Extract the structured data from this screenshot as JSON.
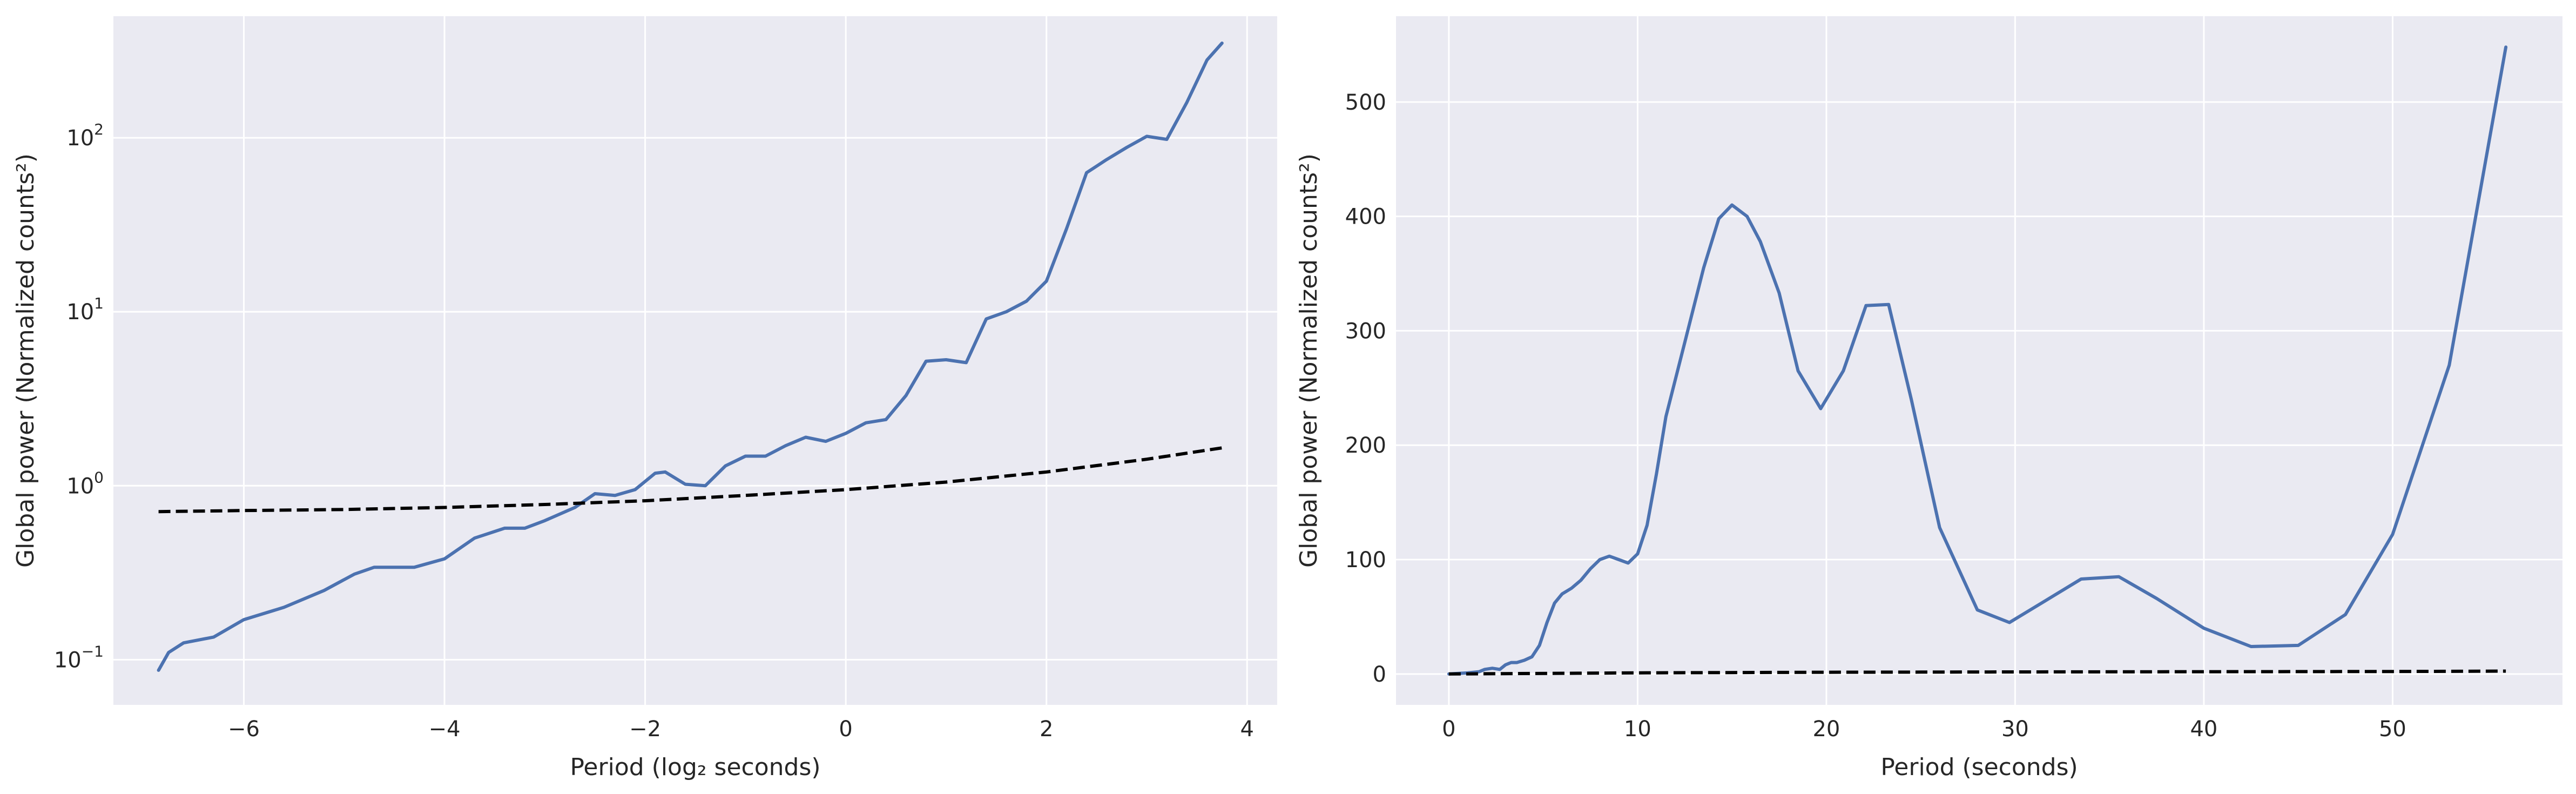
{
  "chart_data": [
    {
      "type": "line",
      "title": "",
      "xlabel": "Period (log₂ seconds)",
      "ylabel": "Global power (Normalized counts²)",
      "yscale": "log",
      "xlim": [
        -7.3,
        4.3
      ],
      "ylim": [
        0.055,
        500
      ],
      "grid": true,
      "style": "seaborn",
      "colors": {
        "background": "#eaeaf2",
        "grid": "#ffffff",
        "series": "#4c72b0",
        "reference": "#000000"
      },
      "x_ticks": [
        -6,
        -4,
        -2,
        0,
        2,
        4
      ],
      "x_tick_labels": [
        "−6",
        "−4",
        "−2",
        "0",
        "2",
        "4"
      ],
      "y_ticks": [
        0.1,
        1,
        10,
        100
      ],
      "y_tick_labels": [
        {
          "base": "10",
          "exp": "−1"
        },
        {
          "base": "10",
          "exp": "0"
        },
        {
          "base": "10",
          "exp": "1"
        },
        {
          "base": "10",
          "exp": "2"
        }
      ],
      "series": [
        {
          "style": "solid",
          "color": "#4c72b0",
          "x": [
            -6.85,
            -6.75,
            -6.6,
            -6.3,
            -6.0,
            -5.6,
            -5.2,
            -4.9,
            -4.7,
            -4.5,
            -4.3,
            -4.0,
            -3.7,
            -3.4,
            -3.2,
            -3.0,
            -2.7,
            -2.5,
            -2.3,
            -2.1,
            -1.9,
            -1.8,
            -1.6,
            -1.4,
            -1.2,
            -1.0,
            -0.8,
            -0.6,
            -0.4,
            -0.2,
            0.0,
            0.2,
            0.4,
            0.6,
            0.8,
            1.0,
            1.2,
            1.4,
            1.6,
            1.8,
            2.0,
            2.2,
            2.4,
            2.6,
            2.8,
            3.0,
            3.2,
            3.4,
            3.6,
            3.75
          ],
          "y": [
            0.087,
            0.11,
            0.125,
            0.135,
            0.17,
            0.2,
            0.25,
            0.31,
            0.34,
            0.34,
            0.34,
            0.38,
            0.5,
            0.57,
            0.57,
            0.63,
            0.75,
            0.9,
            0.88,
            0.95,
            1.18,
            1.2,
            1.02,
            1.0,
            1.3,
            1.48,
            1.48,
            1.7,
            1.9,
            1.8,
            2.0,
            2.3,
            2.4,
            3.3,
            5.2,
            5.3,
            5.1,
            9.1,
            10.0,
            11.5,
            15.0,
            30.0,
            63.0,
            75.0,
            88.0,
            102.0,
            98.0,
            160.0,
            280.0,
            350.0
          ]
        },
        {
          "style": "dashed",
          "color": "#000000",
          "x": [
            -6.85,
            -6.0,
            -5.0,
            -4.0,
            -3.0,
            -2.0,
            -1.0,
            0.0,
            1.0,
            2.0,
            3.0,
            3.75
          ],
          "y": [
            0.71,
            0.72,
            0.73,
            0.75,
            0.78,
            0.82,
            0.88,
            0.95,
            1.05,
            1.2,
            1.42,
            1.65
          ]
        }
      ]
    },
    {
      "type": "line",
      "title": "",
      "xlabel": "Period (seconds)",
      "ylabel": "Global power (Normalized counts²)",
      "yscale": "linear",
      "xlim": [
        -2.8,
        59.0
      ],
      "ylim": [
        -27,
        575
      ],
      "grid": true,
      "style": "seaborn",
      "colors": {
        "background": "#eaeaf2",
        "grid": "#ffffff",
        "series": "#4c72b0",
        "reference": "#000000"
      },
      "x_ticks": [
        0,
        10,
        20,
        30,
        40,
        50
      ],
      "x_tick_labels": [
        "0",
        "10",
        "20",
        "30",
        "40",
        "50"
      ],
      "y_ticks": [
        0,
        100,
        200,
        300,
        400,
        500
      ],
      "y_tick_labels": [
        "0",
        "100",
        "200",
        "300",
        "400",
        "500"
      ],
      "series": [
        {
          "style": "solid",
          "color": "#4c72b0",
          "x": [
            0.0,
            1.0,
            1.6,
            1.9,
            2.3,
            2.7,
            3.0,
            3.3,
            3.6,
            4.0,
            4.4,
            4.8,
            5.2,
            5.6,
            6.0,
            6.5,
            7.0,
            7.5,
            8.0,
            8.5,
            9.0,
            9.5,
            10.0,
            10.5,
            11.0,
            11.5,
            12.5,
            13.5,
            14.3,
            15.0,
            15.8,
            16.5,
            17.5,
            18.5,
            19.7,
            20.9,
            22.1,
            23.3,
            24.5,
            26.0,
            28.0,
            29.7,
            31.5,
            33.5,
            35.5,
            37.5,
            40.0,
            42.5,
            45.0,
            47.5,
            50.0,
            53.0,
            56.0
          ],
          "y": [
            0,
            1,
            2,
            4,
            5,
            4,
            8,
            10,
            10,
            12,
            15,
            25,
            45,
            62,
            70,
            75,
            82,
            92,
            100,
            103,
            100,
            97,
            105,
            130,
            175,
            225,
            290,
            355,
            398,
            410,
            400,
            378,
            333,
            265,
            232,
            265,
            322,
            323,
            240,
            128,
            56,
            45,
            63,
            83,
            85,
            66,
            40,
            24,
            25,
            52,
            122,
            270,
            548
          ]
        },
        {
          "style": "dashed",
          "color": "#000000",
          "x": [
            0,
            10,
            20,
            30,
            40,
            50,
            56
          ],
          "y": [
            0,
            1.0,
            1.5,
            1.8,
            2.0,
            2.2,
            2.5
          ]
        }
      ]
    }
  ]
}
